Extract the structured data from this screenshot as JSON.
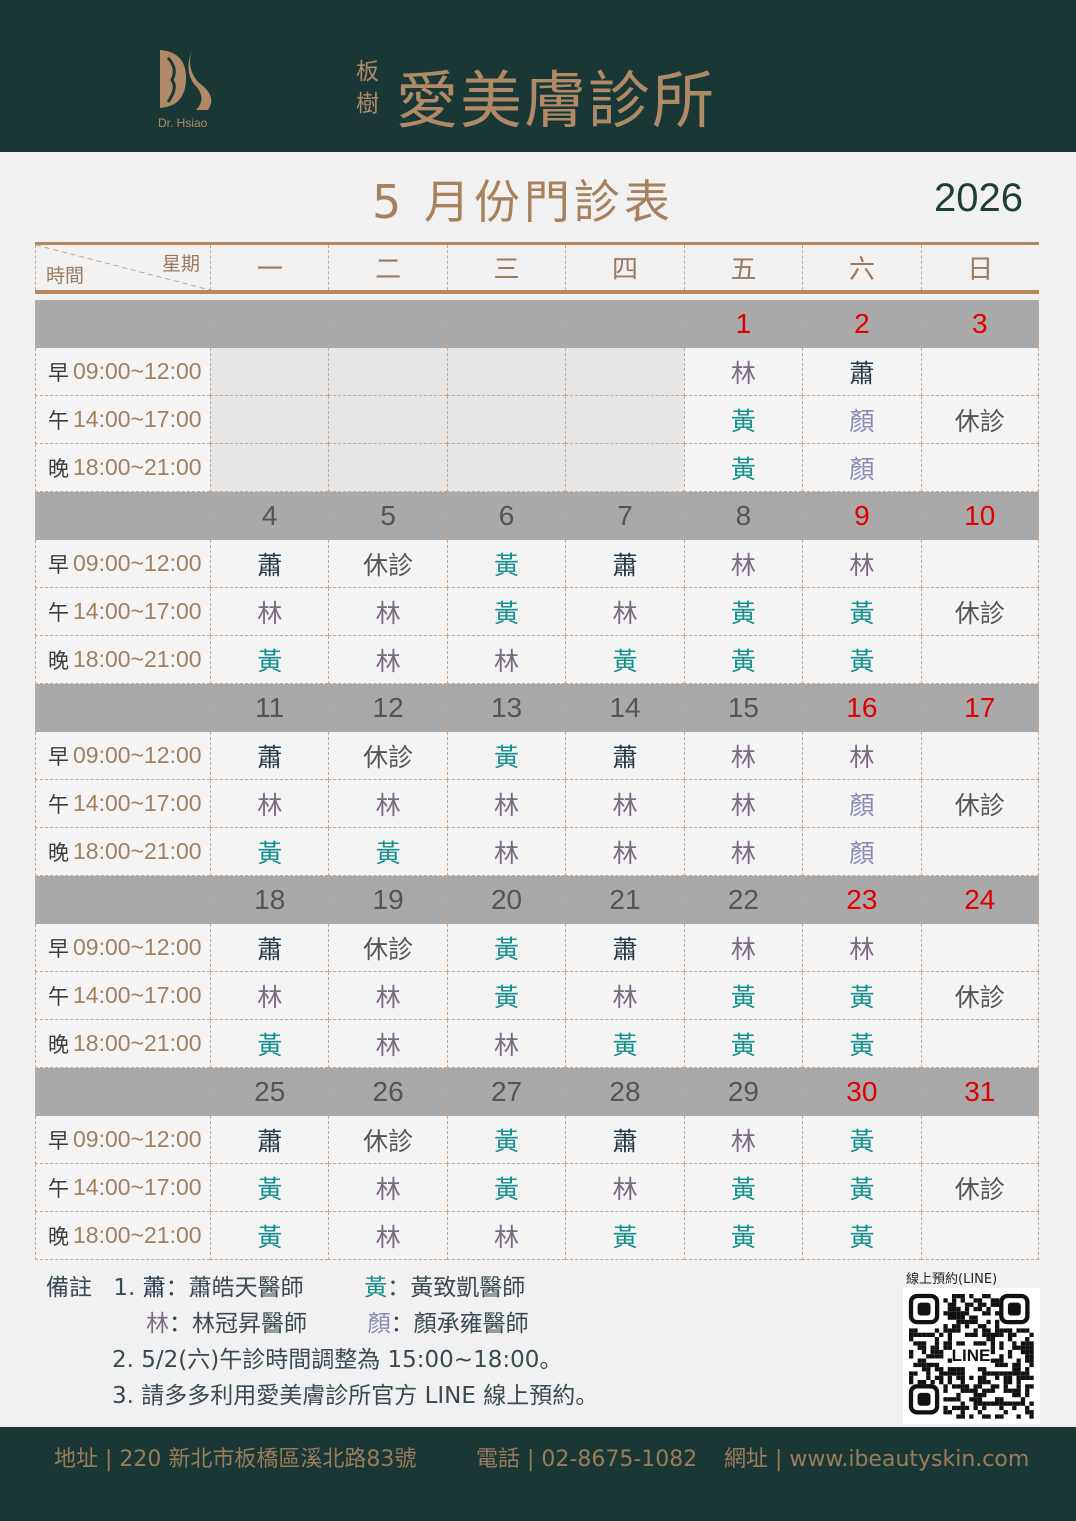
{
  "header": {
    "logo_text": "Dr. Hsiao",
    "location": "板樹",
    "clinic_name": "愛美膚診所",
    "background": "#193835",
    "accent": "#b08a67"
  },
  "title": "5 月份門診表",
  "year": "2026",
  "table": {
    "corner_week": "星期",
    "corner_time": "時間",
    "weekdays": [
      "一",
      "二",
      "三",
      "四",
      "五",
      "六",
      "日"
    ],
    "slots": [
      {
        "prefix": "早",
        "time": "09:00~12:00"
      },
      {
        "prefix": "午",
        "time": "14:00~17:00"
      },
      {
        "prefix": "晚",
        "time": "18:00~21:00"
      }
    ],
    "weeks": [
      {
        "dates": [
          "",
          "",
          "",
          "",
          "1",
          "2",
          "3"
        ],
        "red": [
          false,
          false,
          false,
          false,
          true,
          true,
          true
        ],
        "empty": [
          true,
          true,
          true,
          true,
          false,
          false,
          false
        ],
        "slots": [
          [
            "",
            "",
            "",
            "",
            "林",
            "蕭",
            ""
          ],
          [
            "",
            "",
            "",
            "",
            "黃",
            "顏",
            "休診"
          ],
          [
            "",
            "",
            "",
            "",
            "黃",
            "顏",
            ""
          ]
        ]
      },
      {
        "dates": [
          "4",
          "5",
          "6",
          "7",
          "8",
          "9",
          "10"
        ],
        "red": [
          false,
          false,
          false,
          false,
          false,
          true,
          true
        ],
        "slots": [
          [
            "蕭",
            "休診",
            "黃",
            "蕭",
            "林",
            "林",
            ""
          ],
          [
            "林",
            "林",
            "黃",
            "林",
            "黃",
            "黃",
            "休診"
          ],
          [
            "黃",
            "林",
            "林",
            "黃",
            "黃",
            "黃",
            ""
          ]
        ]
      },
      {
        "dates": [
          "11",
          "12",
          "13",
          "14",
          "15",
          "16",
          "17"
        ],
        "red": [
          false,
          false,
          false,
          false,
          false,
          true,
          true
        ],
        "slots": [
          [
            "蕭",
            "休診",
            "黃",
            "蕭",
            "林",
            "林",
            ""
          ],
          [
            "林",
            "林",
            "林",
            "林",
            "林",
            "顏",
            "休診"
          ],
          [
            "黃",
            "黃",
            "林",
            "林",
            "林",
            "顏",
            ""
          ]
        ]
      },
      {
        "dates": [
          "18",
          "19",
          "20",
          "21",
          "22",
          "23",
          "24"
        ],
        "red": [
          false,
          false,
          false,
          false,
          false,
          true,
          true
        ],
        "slots": [
          [
            "蕭",
            "休診",
            "黃",
            "蕭",
            "林",
            "林",
            ""
          ],
          [
            "林",
            "林",
            "黃",
            "林",
            "黃",
            "黃",
            "休診"
          ],
          [
            "黃",
            "林",
            "林",
            "黃",
            "黃",
            "黃",
            ""
          ]
        ]
      },
      {
        "dates": [
          "25",
          "26",
          "27",
          "28",
          "29",
          "30",
          "31"
        ],
        "red": [
          false,
          false,
          false,
          false,
          false,
          true,
          true
        ],
        "slots": [
          [
            "蕭",
            "休診",
            "黃",
            "蕭",
            "林",
            "黃",
            ""
          ],
          [
            "黃",
            "林",
            "黃",
            "林",
            "黃",
            "黃",
            "休診"
          ],
          [
            "黃",
            "林",
            "林",
            "黃",
            "黃",
            "黃",
            ""
          ]
        ]
      }
    ]
  },
  "doctor_colors": {
    "蕭": "#24384a",
    "林": "#7a6a82",
    "黃": "#158f8c",
    "顏": "#8a8cb4",
    "休診": "#555555"
  },
  "notes": {
    "label": "備註",
    "n1": "1.",
    "doctors": [
      {
        "abbr": "蕭",
        "name": "：蕭皓天醫師"
      },
      {
        "abbr": "黃",
        "name": "：黃致凱醫師"
      },
      {
        "abbr": "林",
        "name": "：林冠昇醫師"
      },
      {
        "abbr": "顏",
        "name": "：顏承雍醫師"
      }
    ],
    "note2": "2. 5/2(六)午診時間調整為 15:00~18:00。",
    "note3": "3. 請多多利用愛美膚診所官方 LINE 線上預約。"
  },
  "qr": {
    "label": "線上預約(LINE)",
    "center_text": "LINE"
  },
  "footer": {
    "address": "地址 | 220 新北市板橋區溪北路83號",
    "phone": "電話 | 02-8675-1082",
    "website": "網址 | www.ibeautyskin.com"
  }
}
